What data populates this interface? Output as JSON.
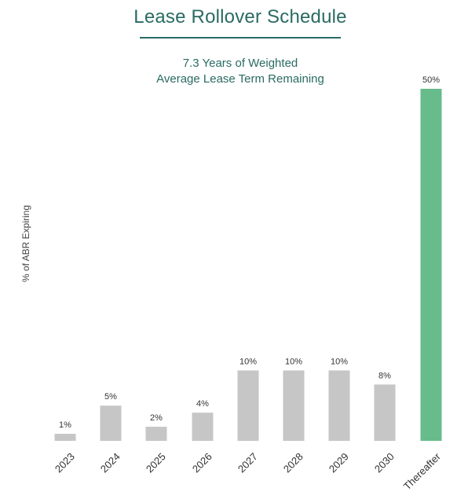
{
  "chart_data": {
    "type": "bar",
    "title": "Lease Rollover Schedule",
    "subtitle_lines": [
      "7.3 Years of Weighted",
      "Average Lease Term Remaining"
    ],
    "ylabel": "% of ABR Expiring",
    "xlabel": "",
    "categories": [
      "2023",
      "2024",
      "2025",
      "2026",
      "2027",
      "2028",
      "2029",
      "2030",
      "Thereafter"
    ],
    "values": [
      1,
      5,
      2,
      4,
      10,
      10,
      10,
      8,
      50
    ],
    "data_labels": [
      "1%",
      "5%",
      "2%",
      "4%",
      "10%",
      "10%",
      "10%",
      "8%",
      "50%"
    ],
    "ylim": [
      0,
      50
    ],
    "grid": false,
    "colors": {
      "default_bar": "#c6c6c6",
      "highlight_bar": "#68bb8a",
      "highlight_category": "Thereafter",
      "title": "#2a6b63"
    }
  }
}
